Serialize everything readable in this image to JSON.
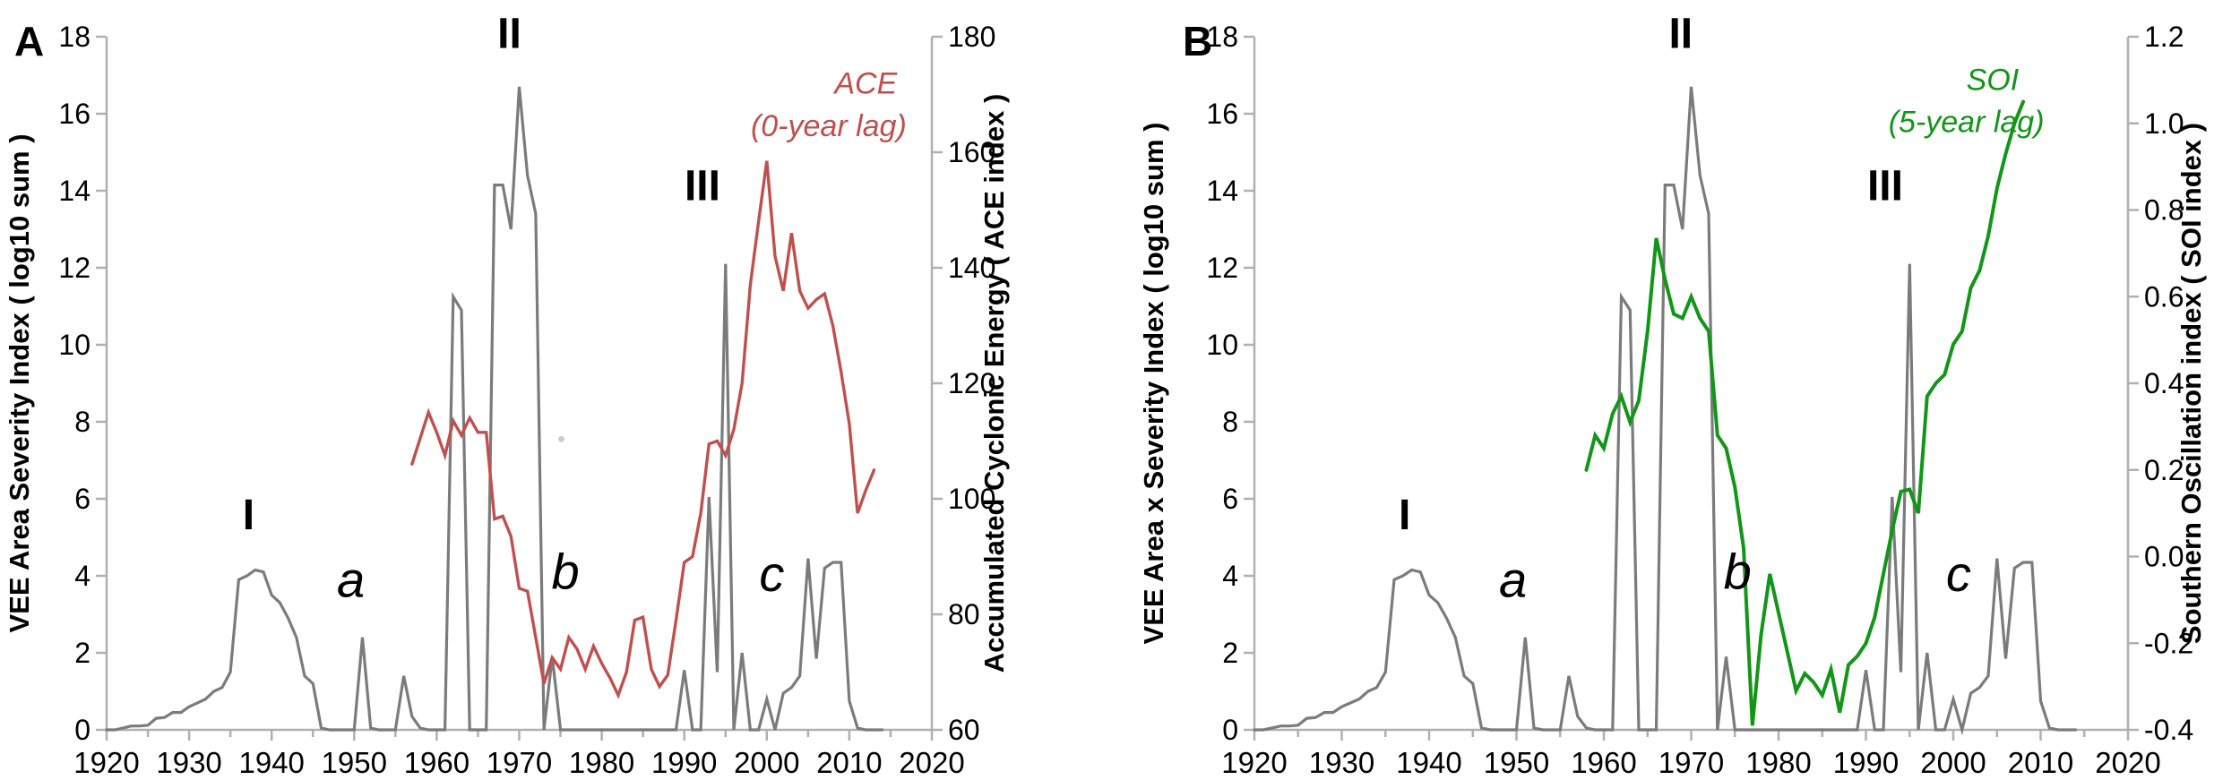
{
  "page": {
    "background": "#ffffff",
    "axis_color": "#b0b0b0",
    "text_color": "#000000"
  },
  "chart_data": [
    {
      "panel_label": "A",
      "type": "line",
      "x_axis": {
        "range": [
          1920,
          2020
        ],
        "major_tick_step": 10,
        "minor_tick_step": 5,
        "tick_labels": [
          "1920",
          "1930",
          "1940",
          "1950",
          "1960",
          "1970",
          "1980",
          "1990",
          "2000",
          "2010",
          "2020"
        ]
      },
      "left_axis": {
        "label": "VEE Area Severity Index  ( log10 sum )",
        "range": [
          0,
          18
        ],
        "tick_step": 2,
        "tick_labels": [
          "0",
          "2",
          "4",
          "6",
          "8",
          "10",
          "12",
          "14",
          "16",
          "18"
        ]
      },
      "right_axis": {
        "label": "Accumulated Cyclonic Energy  ( ACE index )",
        "range": [
          60,
          180
        ],
        "tick_step": 20,
        "tick_labels": [
          "60",
          "80",
          "100",
          "120",
          "140",
          "160",
          "180"
        ]
      },
      "series": [
        {
          "name": "VEE Area Severity Index",
          "axis": "left",
          "color": "#7b7b7b",
          "line_width": 3.2,
          "start_year": 1920,
          "values": [
            0,
            0,
            0.05,
            0.1,
            0.1,
            0.12,
            0.3,
            0.32,
            0.45,
            0.45,
            0.6,
            0.7,
            0.8,
            1,
            1.1,
            1.5,
            3.9,
            4,
            4.15,
            4.1,
            3.5,
            3.3,
            2.9,
            2.4,
            1.4,
            1.2,
            0.05,
            0,
            0,
            0,
            0,
            2.4,
            0.05,
            0,
            0,
            0,
            1.4,
            0.35,
            0.05,
            0,
            0,
            0,
            11.25,
            10.9,
            0,
            0,
            0,
            14.15,
            14.15,
            13,
            16.7,
            14.4,
            13.4,
            0,
            1.9,
            0,
            0,
            0,
            0,
            0,
            0,
            0,
            0,
            0,
            0,
            0,
            0,
            0,
            0,
            0,
            1.55,
            0,
            0,
            6.05,
            1.5,
            12.1,
            0,
            2,
            0,
            0,
            0.8,
            0,
            0.95,
            1.1,
            1.4,
            4.45,
            1.85,
            4.2,
            4.35,
            4.35,
            0.75,
            0.05,
            0,
            0,
            0
          ]
        },
        {
          "name": "ACE (0-year lag)",
          "axis": "right",
          "color": "#c0504d",
          "line_width": 3.4,
          "start_year": 1957,
          "values": [
            106,
            110.5,
            115,
            111.5,
            107.5,
            113.5,
            111,
            114,
            111.5,
            111.5,
            96.5,
            97,
            93.5,
            84.5,
            84,
            76,
            68,
            72.5,
            70.5,
            76,
            74,
            70.5,
            74.5,
            71.5,
            69,
            66,
            70,
            79,
            79.5,
            70.5,
            67.5,
            69.5,
            79,
            89,
            90,
            97.5,
            109.5,
            110,
            107.5,
            112,
            120,
            137,
            148,
            158.5,
            142,
            136,
            146,
            136,
            133,
            134.5,
            135.5,
            130,
            122,
            113,
            97.5,
            101.5,
            105
          ]
        }
      ],
      "annotations": [
        {
          "text": "I",
          "kind": "roman",
          "year": 1937.2,
          "value": 5.6
        },
        {
          "text": "a",
          "kind": "letter",
          "year": 1949.6,
          "value": 3.9
        },
        {
          "text": "II",
          "kind": "roman",
          "year": 1968.8,
          "value": 18.1
        },
        {
          "text": "b",
          "kind": "letter",
          "year": 1975.6,
          "value": 4.1
        },
        {
          "text": "III",
          "kind": "roman",
          "year": 1992.2,
          "value": 14.15
        },
        {
          "text": "c",
          "kind": "letter",
          "year": 2000.6,
          "value": 4.05
        },
        {
          "text": "ACE",
          "kind": "legend",
          "year": 2012.0,
          "value": 16.8
        },
        {
          "text": "(0-year lag)",
          "kind": "legend",
          "year": 2007.5,
          "value": 15.7
        }
      ],
      "speck": {
        "year": 1975.1,
        "value": 7.55,
        "color": "#cccccc"
      }
    },
    {
      "panel_label": "B",
      "type": "line",
      "x_axis": {
        "range": [
          1920,
          2020
        ],
        "major_tick_step": 10,
        "minor_tick_step": 5,
        "tick_labels": [
          "1920",
          "1930",
          "1940",
          "1950",
          "1960",
          "1970",
          "1980",
          "1990",
          "2000",
          "2010",
          "2020"
        ]
      },
      "left_axis": {
        "label": "VEE Area x Severity Index  ( log10 sum )",
        "range": [
          0,
          18
        ],
        "tick_step": 2,
        "tick_labels": [
          "0",
          "2",
          "4",
          "6",
          "8",
          "10",
          "12",
          "14",
          "16",
          "18"
        ]
      },
      "right_axis": {
        "label": "Southern Oscillation index  ( SOI index )",
        "range": [
          -0.4,
          1.2
        ],
        "tick_step": 0.2,
        "tick_labels": [
          "-0.4",
          "-0.2",
          "0.0",
          "0.2",
          "0.4",
          "0.6",
          "0.8",
          "1.0",
          "1.2"
        ]
      },
      "series": [
        {
          "name": "VEE Area x Severity Index",
          "axis": "left",
          "color": "#7b7b7b",
          "line_width": 3.2,
          "start_year": 1920,
          "values": [
            0,
            0,
            0.05,
            0.1,
            0.1,
            0.12,
            0.3,
            0.32,
            0.45,
            0.45,
            0.6,
            0.7,
            0.8,
            1,
            1.1,
            1.5,
            3.9,
            4,
            4.15,
            4.1,
            3.5,
            3.3,
            2.9,
            2.4,
            1.4,
            1.2,
            0.05,
            0,
            0,
            0,
            0,
            2.4,
            0.05,
            0,
            0,
            0,
            1.4,
            0.35,
            0.05,
            0,
            0,
            0,
            11.25,
            10.9,
            0,
            0,
            0,
            14.15,
            14.15,
            13,
            16.7,
            14.4,
            13.4,
            0,
            1.9,
            0,
            0,
            0,
            0,
            0,
            0,
            0,
            0,
            0,
            0,
            0,
            0,
            0,
            0,
            0,
            1.55,
            0,
            0,
            6.05,
            1.5,
            12.1,
            0,
            2,
            0,
            0,
            0.8,
            0,
            0.95,
            1.1,
            1.4,
            4.45,
            1.85,
            4.2,
            4.35,
            4.35,
            0.75,
            0.05,
            0,
            0,
            0
          ]
        },
        {
          "name": "SOI (5-year lag)",
          "axis": "right",
          "color": "#129618",
          "line_width": 4,
          "start_year": 1958,
          "values": [
            0.2,
            0.28,
            0.25,
            0.33,
            0.37,
            0.31,
            0.36,
            0.52,
            0.735,
            0.64,
            0.56,
            0.55,
            0.6,
            0.55,
            0.52,
            0.28,
            0.25,
            0.16,
            0.02,
            -0.39,
            -0.18,
            -0.04,
            -0.13,
            -0.22,
            -0.31,
            -0.27,
            -0.29,
            -0.32,
            -0.26,
            -0.36,
            -0.25,
            -0.23,
            -0.2,
            -0.14,
            -0.04,
            0.06,
            0.15,
            0.155,
            0.1,
            0.37,
            0.4,
            0.42,
            0.49,
            0.52,
            0.62,
            0.66,
            0.74,
            0.85,
            0.93,
            1,
            1.05
          ]
        }
      ],
      "annotations": [
        {
          "text": "I",
          "kind": "roman",
          "year": 1937.2,
          "value": 5.6
        },
        {
          "text": "a",
          "kind": "letter",
          "year": 1949.6,
          "value": 3.9
        },
        {
          "text": "II",
          "kind": "roman",
          "year": 1968.8,
          "value": 18.1
        },
        {
          "text": "b",
          "kind": "letter",
          "year": 1975.3,
          "value": 4.1
        },
        {
          "text": "III",
          "kind": "roman",
          "year": 1992.2,
          "value": 14.15
        },
        {
          "text": "c",
          "kind": "letter",
          "year": 2000.6,
          "value": 4.05
        },
        {
          "text": "SOI",
          "kind": "legend",
          "year": 2004.5,
          "value": 16.9
        },
        {
          "text": "(5-year lag)",
          "kind": "legend",
          "year": 2001.5,
          "value": 15.8
        }
      ]
    }
  ]
}
